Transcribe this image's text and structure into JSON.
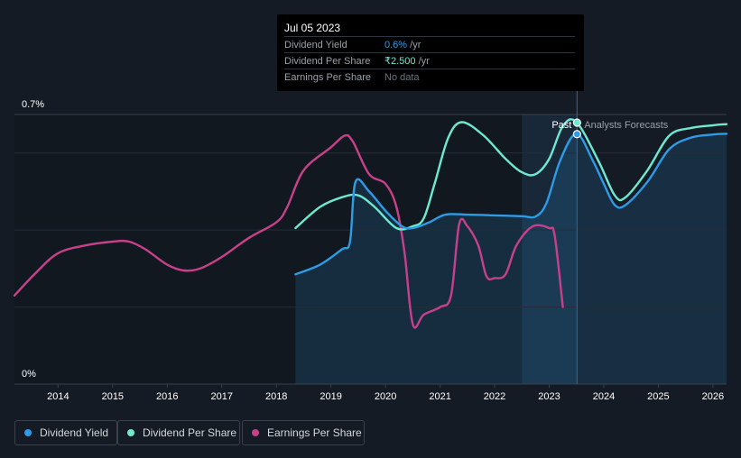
{
  "tooltip": {
    "date": "Jul 05 2023",
    "rows": [
      {
        "label": "Dividend Yield",
        "value": "0.6%",
        "unit": " /yr",
        "color": "#2e9be6"
      },
      {
        "label": "Dividend Per Share",
        "value": "₹2.500",
        "unit": " /yr",
        "color": "#6ee8cf"
      },
      {
        "label": "Earnings Per Share",
        "value": "No data",
        "unit": "",
        "color": "#6b7280"
      }
    ]
  },
  "legend": [
    {
      "label": "Dividend Yield",
      "color": "#2e9be6"
    },
    {
      "label": "Dividend Per Share",
      "color": "#6ee8cf"
    },
    {
      "label": "Earnings Per Share",
      "color": "#c8408b"
    }
  ],
  "chart_data": {
    "type": "line",
    "title": "",
    "xlabel": "",
    "ylabel": "",
    "y_tick_labels": [
      "0.7%",
      "0%"
    ],
    "ylim": [
      0,
      0.7
    ],
    "xlim": [
      2013.2,
      2026.25
    ],
    "x_ticks": [
      2014,
      2015,
      2016,
      2017,
      2018,
      2019,
      2020,
      2021,
      2022,
      2023,
      2024,
      2025,
      2026
    ],
    "past_label": "Past",
    "forecast_label": "Analysts Forecasts",
    "past_start": 2022.5,
    "divider_x": 2023.51,
    "series": [
      {
        "name": "Earnings Per Share",
        "color": "#c8408b",
        "points": [
          [
            2013.2,
            0.23
          ],
          [
            2013.6,
            0.29
          ],
          [
            2014.0,
            0.34
          ],
          [
            2014.5,
            0.36
          ],
          [
            2015.0,
            0.37
          ],
          [
            2015.3,
            0.37
          ],
          [
            2015.6,
            0.35
          ],
          [
            2016.0,
            0.31
          ],
          [
            2016.3,
            0.295
          ],
          [
            2016.6,
            0.3
          ],
          [
            2017.0,
            0.33
          ],
          [
            2017.5,
            0.38
          ],
          [
            2018.0,
            0.42
          ],
          [
            2018.2,
            0.46
          ],
          [
            2018.5,
            0.555
          ],
          [
            2019.0,
            0.615
          ],
          [
            2019.25,
            0.645
          ],
          [
            2019.4,
            0.63
          ],
          [
            2019.7,
            0.545
          ],
          [
            2020.0,
            0.52
          ],
          [
            2020.2,
            0.46
          ],
          [
            2020.35,
            0.34
          ],
          [
            2020.5,
            0.155
          ],
          [
            2020.7,
            0.18
          ],
          [
            2021.0,
            0.2
          ],
          [
            2021.2,
            0.23
          ],
          [
            2021.35,
            0.415
          ],
          [
            2021.5,
            0.41
          ],
          [
            2021.7,
            0.36
          ],
          [
            2021.85,
            0.28
          ],
          [
            2022.0,
            0.275
          ],
          [
            2022.2,
            0.285
          ],
          [
            2022.4,
            0.36
          ],
          [
            2022.7,
            0.41
          ],
          [
            2023.0,
            0.405
          ],
          [
            2023.1,
            0.385
          ],
          [
            2023.25,
            0.2
          ]
        ]
      },
      {
        "name": "Dividend Per Share",
        "color": "#6ee8cf",
        "points": [
          [
            2018.35,
            0.405
          ],
          [
            2018.8,
            0.46
          ],
          [
            2019.2,
            0.485
          ],
          [
            2019.5,
            0.49
          ],
          [
            2019.8,
            0.46
          ],
          [
            2020.2,
            0.405
          ],
          [
            2020.5,
            0.41
          ],
          [
            2020.7,
            0.43
          ],
          [
            2020.9,
            0.52
          ],
          [
            2021.15,
            0.64
          ],
          [
            2021.4,
            0.68
          ],
          [
            2021.8,
            0.645
          ],
          [
            2022.2,
            0.585
          ],
          [
            2022.5,
            0.55
          ],
          [
            2022.75,
            0.545
          ],
          [
            2023.0,
            0.585
          ],
          [
            2023.25,
            0.67
          ],
          [
            2023.5,
            0.68
          ],
          [
            2023.9,
            0.58
          ],
          [
            2024.2,
            0.49
          ],
          [
            2024.4,
            0.485
          ],
          [
            2024.8,
            0.555
          ],
          [
            2025.2,
            0.645
          ],
          [
            2025.6,
            0.665
          ],
          [
            2026.0,
            0.672
          ],
          [
            2026.25,
            0.675
          ]
        ]
      },
      {
        "name": "Dividend Yield",
        "color": "#2e9be6",
        "points": [
          [
            2018.35,
            0.285
          ],
          [
            2018.8,
            0.31
          ],
          [
            2019.2,
            0.35
          ],
          [
            2019.35,
            0.37
          ],
          [
            2019.45,
            0.525
          ],
          [
            2019.7,
            0.5
          ],
          [
            2020.0,
            0.45
          ],
          [
            2020.3,
            0.41
          ],
          [
            2020.5,
            0.405
          ],
          [
            2020.8,
            0.42
          ],
          [
            2021.1,
            0.44
          ],
          [
            2021.5,
            0.44
          ],
          [
            2022.0,
            0.438
          ],
          [
            2022.5,
            0.436
          ],
          [
            2022.75,
            0.435
          ],
          [
            2022.95,
            0.47
          ],
          [
            2023.2,
            0.58
          ],
          [
            2023.5,
            0.65
          ],
          [
            2023.8,
            0.58
          ],
          [
            2024.0,
            0.52
          ],
          [
            2024.2,
            0.465
          ],
          [
            2024.4,
            0.465
          ],
          [
            2024.8,
            0.525
          ],
          [
            2025.2,
            0.61
          ],
          [
            2025.6,
            0.64
          ],
          [
            2026.0,
            0.648
          ],
          [
            2026.25,
            0.65
          ]
        ]
      }
    ],
    "highlight_points": [
      {
        "series": "Dividend Per Share",
        "x": 2023.51,
        "y": 0.679
      },
      {
        "series": "Dividend Yield",
        "x": 2023.51,
        "y": 0.649
      }
    ]
  }
}
